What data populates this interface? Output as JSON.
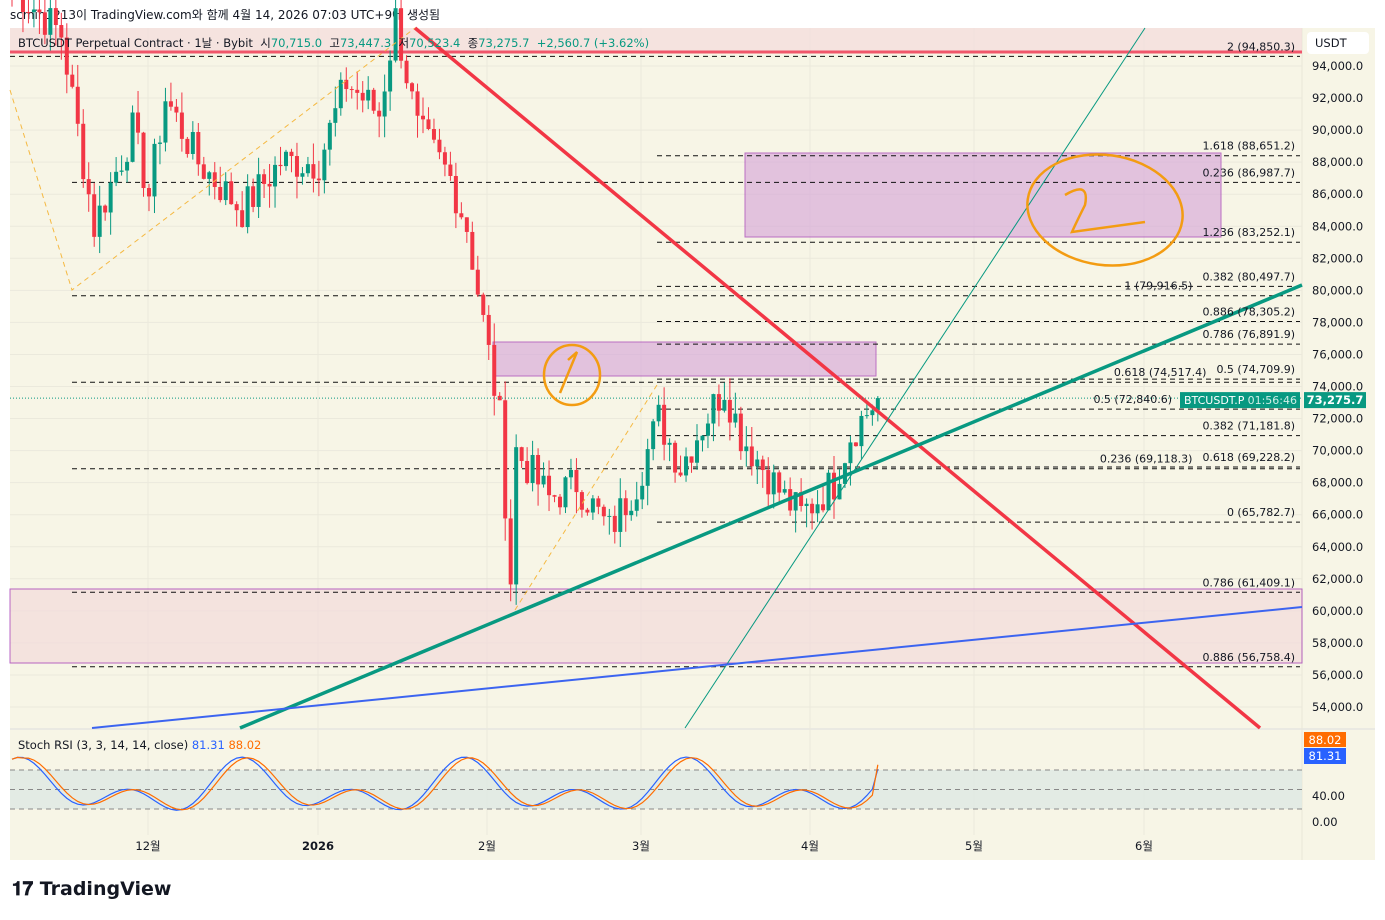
{
  "header": {
    "caption": "scmin1213이 TradingView.com와 함께 4월 14, 2026 07:03 UTC+9에 생성됨"
  },
  "legend": {
    "symbol": "BTCUSDT Perpetual Contract · 1날 · Bybit",
    "open_label": "시",
    "open": "70,715.0",
    "high_label": "고",
    "high": "73,447.3",
    "low_label": "저",
    "low": "70,523.4",
    "close_label": "종",
    "close": "73,275.7",
    "change": "+2,560.7 (+3.62%)"
  },
  "currency": "USDT",
  "price_tag": {
    "symbol": "BTCUSDT.P",
    "price": "73,275.7",
    "countdown": "01:56:46"
  },
  "rsi": {
    "title": "Stoch RSI (3, 3, 14, 14, close)",
    "k": "81.31",
    "d": "88.02",
    "k_color": "#2962ff",
    "d_color": "#ff6d00",
    "axis": [
      "40.00",
      "0.00"
    ]
  },
  "brand": "TradingView",
  "colors": {
    "up": "#089981",
    "down": "#f23645",
    "bg": "#f7f5e6"
  },
  "chart_data": {
    "type": "candlestick",
    "title": "BTCUSDT Perpetual Contract · 1날 · Bybit",
    "ylim": [
      53000,
      95500
    ],
    "y_ticks": [
      94000,
      92000,
      90000,
      88000,
      86000,
      84000,
      82000,
      80000,
      78000,
      76000,
      74000,
      72000,
      70000,
      68000,
      66000,
      64000,
      62000,
      60000,
      58000,
      56000,
      54000
    ],
    "x_ticks": [
      "12월",
      "2026",
      "2월",
      "3월",
      "4월",
      "5월",
      "6월"
    ],
    "close_path": [
      [
        0,
        99000
      ],
      [
        9,
        96000
      ],
      [
        15,
        84000
      ],
      [
        22,
        90000
      ],
      [
        25,
        86000
      ],
      [
        28,
        92000
      ],
      [
        34,
        88000
      ],
      [
        42,
        85000
      ],
      [
        49,
        88000
      ],
      [
        56,
        88000
      ],
      [
        61,
        93000
      ],
      [
        67,
        91000
      ],
      [
        70,
        97000
      ],
      [
        74,
        90000
      ],
      [
        80,
        87000
      ],
      [
        83,
        84000
      ],
      [
        86,
        78000
      ],
      [
        89,
        72000
      ],
      [
        91,
        62000
      ],
      [
        92,
        70000
      ],
      [
        98,
        67000
      ],
      [
        103,
        68000
      ],
      [
        109,
        65000
      ],
      [
        114,
        68000
      ],
      [
        118,
        72000
      ],
      [
        122,
        69000
      ],
      [
        125,
        71000
      ],
      [
        130,
        74000
      ],
      [
        133,
        71000
      ],
      [
        137,
        69000
      ],
      [
        141,
        67000
      ],
      [
        144,
        66000
      ],
      [
        150,
        68000
      ],
      [
        153,
        71000
      ],
      [
        158,
        73275.7
      ]
    ],
    "fib_levels": [
      {
        "label": "2 (94,850.3)",
        "price": 94850.3
      },
      {
        "label": "1.618 (88,651.2)",
        "price": 88651.2
      },
      {
        "label": "0.236 (86,987.7)",
        "price": 86987.7
      },
      {
        "label": "1.236 (83,252.1)",
        "price": 83252.1
      },
      {
        "label": "0.382 (80,497.7)",
        "price": 80497.7
      },
      {
        "label": "1 (79,916.5)",
        "price": 79916.5
      },
      {
        "label": "0.886 (78,305.2)",
        "price": 78305.2
      },
      {
        "label": "0.786 (76,891.9)",
        "price": 76891.9
      },
      {
        "label": "0.5 (74,709.9)",
        "price": 74709.9
      },
      {
        "label": "0.618 (74,517.4)",
        "price": 74517.4
      },
      {
        "label": "0.5 (72,840.6)",
        "price": 72840.6
      },
      {
        "label": "0.382 (71,181.8)",
        "price": 71181.8
      },
      {
        "label": "0.618 (69,228.2)",
        "price": 69228.2
      },
      {
        "label": "0.236 (69,118.3)",
        "price": 69118.3
      },
      {
        "label": "0 (65,782.7)",
        "price": 65782.7
      },
      {
        "label": "0.786 (61,409.1)",
        "price": 61409.1
      },
      {
        "label": "0.886 (56,758.4)",
        "price": 56758.4
      }
    ],
    "annotations": [
      "1",
      "2"
    ]
  }
}
